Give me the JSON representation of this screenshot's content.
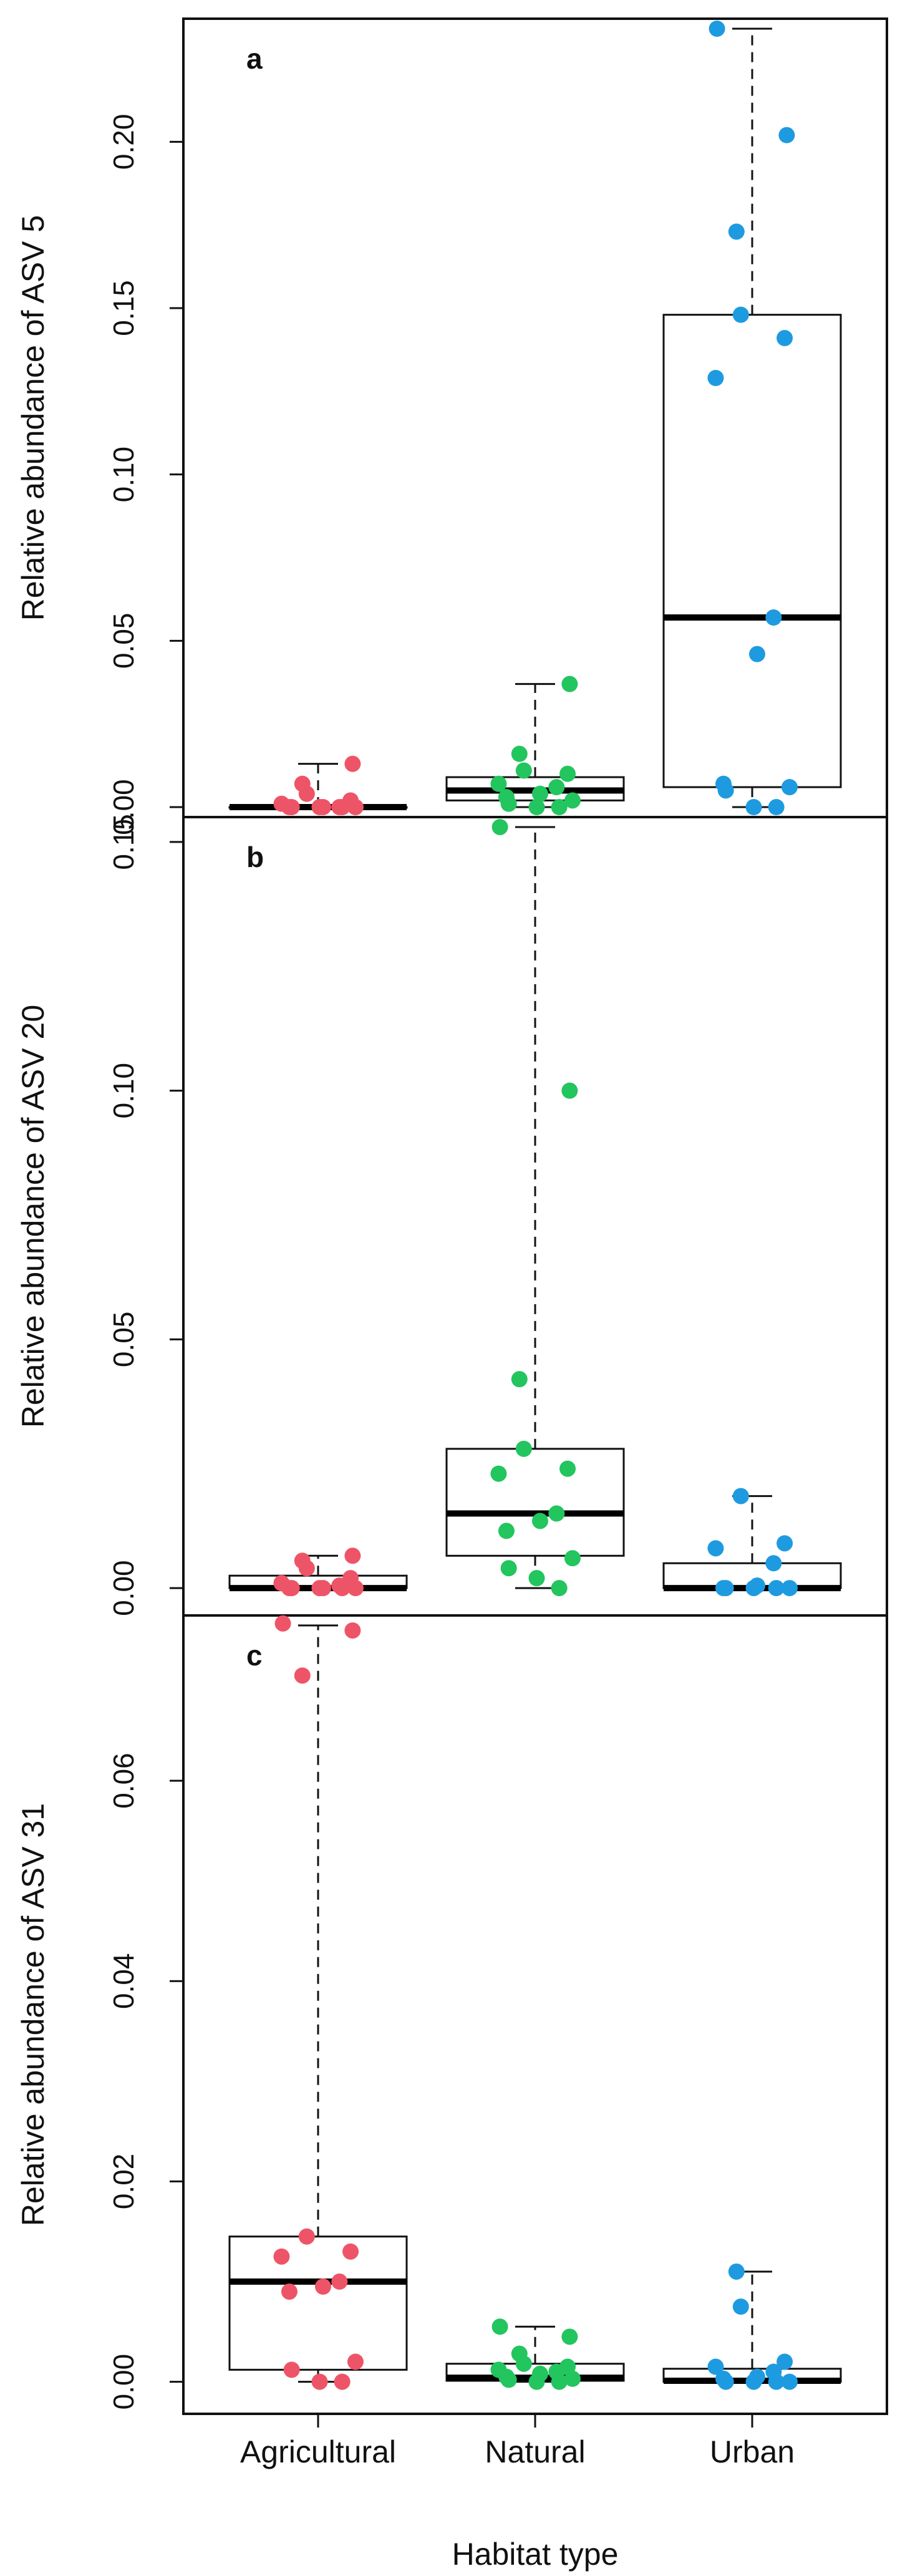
{
  "chart_data": {
    "type": "boxplot",
    "xlabel": "Habitat type",
    "categories": [
      "Agricultural",
      "Natural",
      "Urban"
    ],
    "category_colors": [
      "#ee5467",
      "#22c55e",
      "#1e9be0"
    ],
    "panels": [
      {
        "letter": "a",
        "ylabel": "Relative abundance of ASV 5",
        "ylim": [
          -0.003,
          0.237
        ],
        "yticks": [
          0.0,
          0.05,
          0.1,
          0.15,
          0.2
        ],
        "ytick_labels": [
          "0.00",
          "0.05",
          "0.10",
          "0.15",
          "0.20"
        ],
        "boxes": [
          {
            "min": 0.0,
            "q1": 0.0,
            "median": 0.0,
            "q3": 0.0,
            "max": 0.013
          },
          {
            "min": 0.0,
            "q1": 0.002,
            "median": 0.005,
            "q3": 0.009,
            "max": 0.037
          },
          {
            "min": 0.0,
            "q1": 0.006,
            "median": 0.057,
            "q3": 0.148,
            "max": 0.234
          }
        ],
        "points": [
          [
            0.0,
            0.0,
            0.0,
            0.0,
            0.0,
            0.0,
            0.0,
            0.001,
            0.002,
            0.004,
            0.007,
            0.013
          ],
          [
            0.0,
            0.0,
            0.001,
            0.002,
            0.003,
            0.004,
            0.006,
            0.007,
            0.01,
            0.011,
            0.016,
            0.037
          ],
          [
            0.0,
            0.0,
            0.005,
            0.006,
            0.007,
            0.046,
            0.057,
            0.129,
            0.141,
            0.148,
            0.173,
            0.202,
            0.234
          ]
        ]
      },
      {
        "letter": "b",
        "ylabel": "Relative abundance of ASV 20",
        "ylim": [
          -0.0055,
          0.155
        ],
        "yticks": [
          0.0,
          0.05,
          0.1,
          0.15
        ],
        "ytick_labels": [
          "0.00",
          "0.05",
          "0.10",
          "0.15"
        ],
        "boxes": [
          {
            "min": 0.0,
            "q1": 0.0,
            "median": 0.0,
            "q3": 0.0025,
            "max": 0.0065
          },
          {
            "min": 0.0,
            "q1": 0.0065,
            "median": 0.015,
            "q3": 0.028,
            "max": 0.153
          },
          {
            "min": 0.0,
            "q1": 0.0,
            "median": 0.0,
            "q3": 0.005,
            "max": 0.0185
          }
        ],
        "points": [
          [
            0.0,
            0.0,
            0.0,
            0.0,
            0.0,
            0.0,
            0.0005,
            0.001,
            0.002,
            0.004,
            0.0055,
            0.0065
          ],
          [
            0.0,
            0.002,
            0.004,
            0.006,
            0.0115,
            0.0135,
            0.015,
            0.023,
            0.024,
            0.028,
            0.042,
            0.1,
            0.153
          ],
          [
            0.0,
            0.0,
            0.0,
            0.0,
            0.0,
            0.0005,
            0.005,
            0.008,
            0.009,
            0.0185
          ]
        ]
      },
      {
        "letter": "c",
        "ylabel": "Relative abundance of ASV 31",
        "ylim": [
          -0.0032,
          0.0765
        ],
        "yticks": [
          0.0,
          0.02,
          0.04,
          0.06
        ],
        "ytick_labels": [
          "0.00",
          "0.02",
          "0.04",
          "0.06"
        ],
        "boxes": [
          {
            "min": 0.0,
            "q1": 0.0012,
            "median": 0.01,
            "q3": 0.0145,
            "max": 0.0755
          },
          {
            "min": 0.0,
            "q1": 0.0001,
            "median": 0.0004,
            "q3": 0.0018,
            "max": 0.0055
          },
          {
            "min": 0.0,
            "q1": 0.0,
            "median": 0.0001,
            "q3": 0.0013,
            "max": 0.011
          }
        ],
        "points": [
          [
            0.0,
            0.0,
            0.0012,
            0.002,
            0.009,
            0.0095,
            0.01,
            0.0125,
            0.013,
            0.0145,
            0.0705,
            0.075,
            0.0757
          ],
          [
            0.0,
            0.0,
            0.0002,
            0.0003,
            0.0005,
            0.0008,
            0.001,
            0.0012,
            0.0015,
            0.0018,
            0.0028,
            0.0045,
            0.0055
          ],
          [
            0.0,
            0.0,
            0.0,
            0.0,
            0.0003,
            0.0005,
            0.001,
            0.0015,
            0.002,
            0.0075,
            0.011
          ]
        ]
      }
    ]
  }
}
